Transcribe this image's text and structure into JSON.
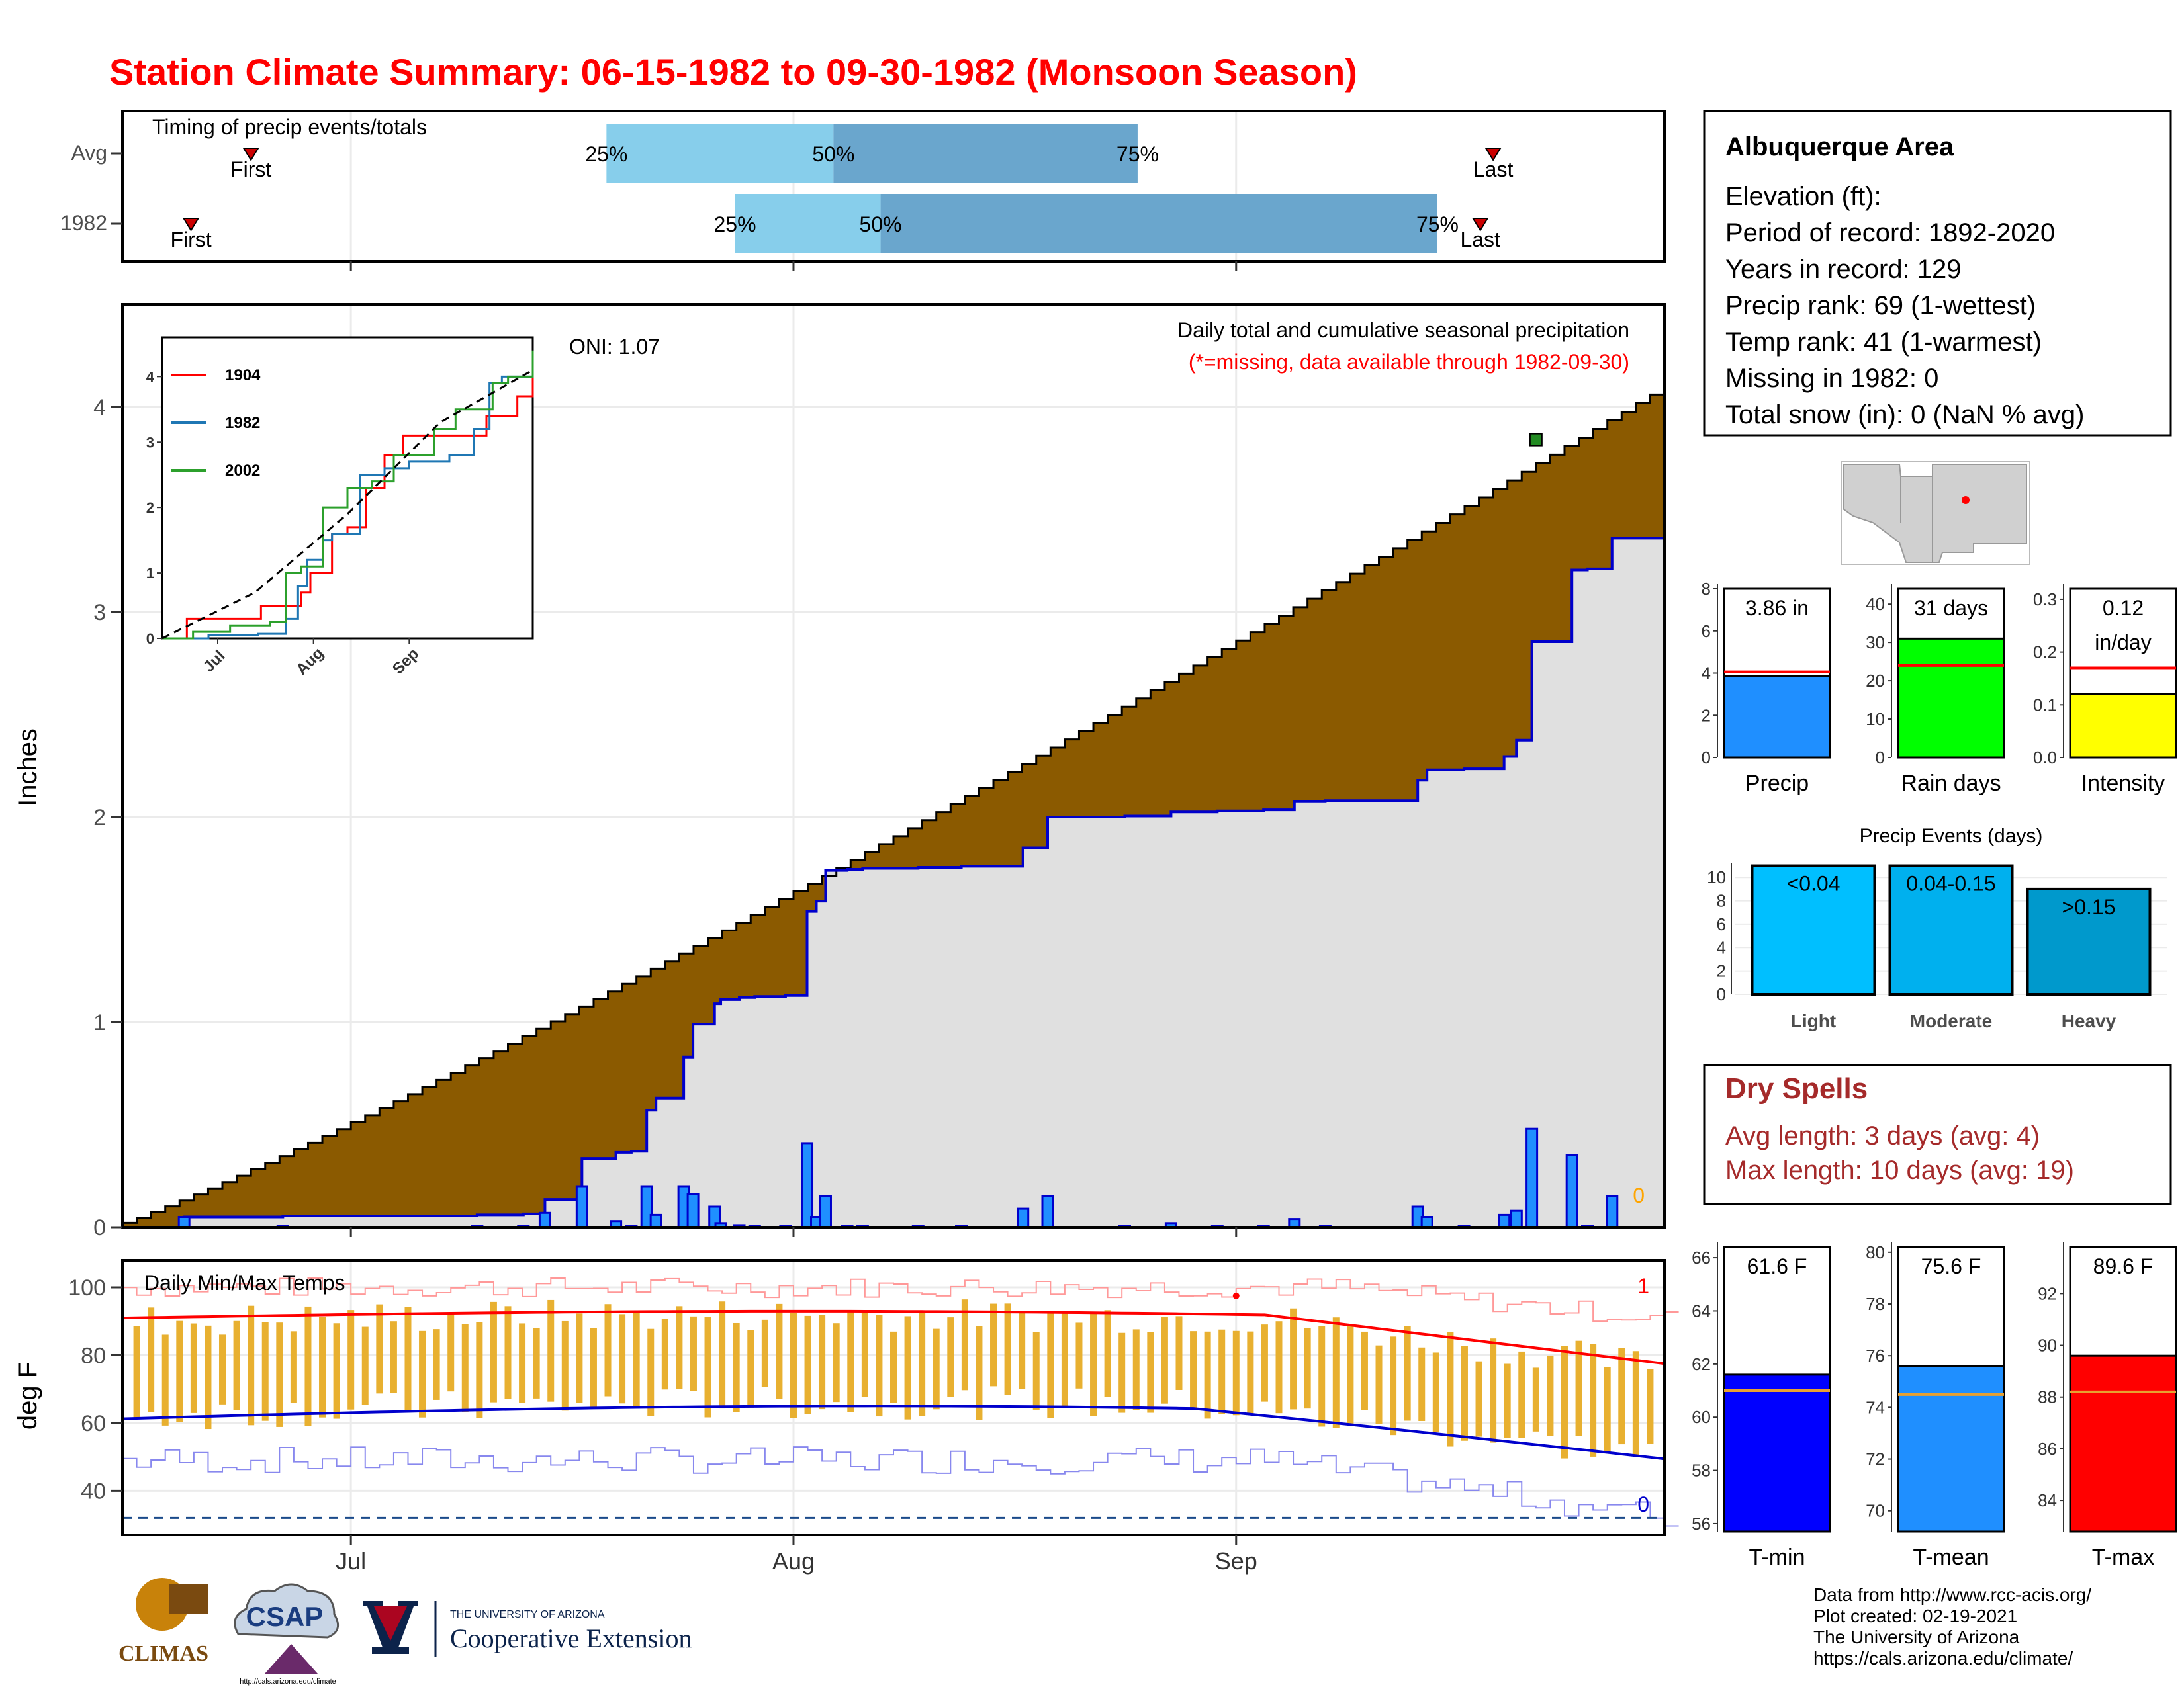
{
  "title": "Station Climate Summary: 06-15-1982 to 09-30-1982 (Monsoon Season)",
  "colors": {
    "title": "#ff0000",
    "brown": "#8b5a00",
    "gray": "#e0e0e0",
    "blue": "#1f8fff",
    "navy": "#0000cc",
    "orange": "#e8b030",
    "darkred": "#a52a2a"
  },
  "timing": {
    "title": "Timing of precip events/totals",
    "rows": [
      {
        "label": "Avg",
        "first_label": "First",
        "last_label": "Last",
        "p25": "25%",
        "p50": "50%",
        "p75": "75%"
      },
      {
        "label": "1982",
        "first_label": "First",
        "last_label": "Last",
        "p25": "25%",
        "p50": "50%",
        "p75": "75%"
      }
    ]
  },
  "chart_data": [
    {
      "name": "timing",
      "type": "bar",
      "rows": [
        "Avg",
        "1982"
      ],
      "first_day": [
        30,
        16
      ],
      "p25_day": [
        113,
        143
      ],
      "p50_day": [
        166,
        177
      ],
      "p75_day": [
        237,
        307
      ],
      "last_day": [
        320,
        317
      ]
    },
    {
      "name": "precip",
      "type": "area",
      "title": "Daily total and cumulative seasonal precipitation",
      "subtitle": "(*=missing, data available through 1982-09-30)",
      "annotation": "ONI: 1.07",
      "corner_value": "0",
      "ylabel": "Inches",
      "ylim": [
        0,
        4.5
      ],
      "yticks": [
        "0",
        "1",
        "2",
        "3",
        "4"
      ],
      "xticks": [
        "Jul",
        "Aug",
        "Sep"
      ],
      "avg_total": 4.06,
      "daily_1982": [
        [
          20,
          0.05
        ],
        [
          52,
          0.005
        ],
        [
          115,
          0.005
        ],
        [
          130,
          0.005
        ],
        [
          137,
          0.07
        ],
        [
          149,
          0.2
        ],
        [
          160,
          0.03
        ],
        [
          165,
          0.005
        ],
        [
          170,
          0.2
        ],
        [
          173,
          0.06
        ],
        [
          182,
          0.2
        ],
        [
          185,
          0.16
        ],
        [
          192,
          0.1
        ],
        [
          194,
          0.02
        ],
        [
          200,
          0.01
        ],
        [
          205,
          0.005
        ],
        [
          215,
          0.005
        ],
        [
          222,
          0.41
        ],
        [
          225,
          0.05
        ],
        [
          228,
          0.15
        ],
        [
          235,
          0.005
        ],
        [
          240,
          0.005
        ],
        [
          258,
          0.005
        ],
        [
          272,
          0.005
        ],
        [
          292,
          0.09
        ],
        [
          300,
          0.15
        ],
        [
          325,
          0.005
        ],
        [
          340,
          0.02
        ],
        [
          355,
          0.005
        ],
        [
          370,
          0.005
        ],
        [
          380,
          0.04
        ],
        [
          390,
          0.005
        ],
        [
          420,
          0.1
        ],
        [
          423,
          0.05
        ],
        [
          435,
          0.005
        ],
        [
          448,
          0.06
        ],
        [
          452,
          0.08
        ],
        [
          457,
          0.48
        ],
        [
          470,
          0.35
        ],
        [
          475,
          0.005
        ],
        [
          483,
          0.15
        ]
      ]
    },
    {
      "name": "inset",
      "type": "line",
      "yticks": [
        "0",
        "1",
        "2",
        "3",
        "4"
      ],
      "xticks": [
        "Jul",
        "Aug",
        "Sep"
      ],
      "series": [
        {
          "name": "1904",
          "color": "#ff0000",
          "values": [
            [
              0,
              0
            ],
            [
              8,
              0.3
            ],
            [
              20,
              0.3
            ],
            [
              32,
              0.5
            ],
            [
              45,
              0.7
            ],
            [
              48,
              1.0
            ],
            [
              55,
              1.6
            ],
            [
              60,
              1.7
            ],
            [
              66,
              2.3
            ],
            [
              72,
              2.8
            ],
            [
              78,
              3.1
            ],
            [
              86,
              3.1
            ],
            [
              96,
              3.1
            ],
            [
              105,
              3.4
            ],
            [
              115,
              3.7
            ],
            [
              120,
              4.3
            ]
          ]
        },
        {
          "name": "1982",
          "color": "#1f77b4",
          "values": [
            [
              0,
              0
            ],
            [
              15,
              0.05
            ],
            [
              31,
              0.07
            ],
            [
              40,
              0.3
            ],
            [
              44,
              0.8
            ],
            [
              47,
              1.2
            ],
            [
              52,
              1.5
            ],
            [
              55,
              1.6
            ],
            [
              64,
              2.5
            ],
            [
              72,
              2.6
            ],
            [
              80,
              2.7
            ],
            [
              93,
              2.8
            ],
            [
              101,
              3.2
            ],
            [
              106,
              3.9
            ],
            [
              110,
              4.0
            ],
            [
              120,
              4.0
            ]
          ]
        },
        {
          "name": "2002",
          "color": "#2ca02c",
          "values": [
            [
              0,
              0
            ],
            [
              10,
              0.1
            ],
            [
              22,
              0.2
            ],
            [
              35,
              0.25
            ],
            [
              40,
              1.0
            ],
            [
              45,
              1.1
            ],
            [
              52,
              2.0
            ],
            [
              60,
              2.3
            ],
            [
              68,
              2.4
            ],
            [
              75,
              2.8
            ],
            [
              88,
              3.2
            ],
            [
              95,
              3.5
            ],
            [
              102,
              3.5
            ],
            [
              107,
              3.9
            ],
            [
              112,
              4.0
            ],
            [
              120,
              4.4
            ]
          ]
        },
        {
          "name": "avg",
          "color": "#000000",
          "values": [
            [
              0,
              0
            ],
            [
              30,
              0.7
            ],
            [
              60,
              1.9
            ],
            [
              90,
              3.3
            ],
            [
              120,
              4.1
            ]
          ]
        }
      ]
    },
    {
      "name": "temps",
      "type": "line",
      "title": "Daily Min/Max Temps",
      "ylabel": "deg F",
      "ylim": [
        27,
        108
      ],
      "yticks": [
        "40",
        "60",
        "80",
        "100"
      ],
      "xticks": [
        "Jul",
        "Aug",
        "Sep"
      ],
      "freeze_line": 32,
      "max_count": "1",
      "min_count": "0"
    },
    {
      "name": "summary_precip",
      "type": "bar",
      "categories": [
        "Precip",
        "Rain days",
        "Intensity"
      ],
      "values": [
        3.86,
        31,
        0.12
      ],
      "averages": [
        4.06,
        24,
        0.17
      ],
      "labels": [
        "3.86 in",
        "31 days",
        "0.12 in/day"
      ],
      "yticks": [
        [
          "0",
          "2",
          "4",
          "6",
          "8"
        ],
        [
          "0",
          "10",
          "20",
          "30",
          "40"
        ],
        [
          "0.0",
          "0.1",
          "0.2",
          "0.3"
        ]
      ]
    },
    {
      "name": "precip_events",
      "type": "bar",
      "title": "Precip Events (days)",
      "categories": [
        "Light",
        "Moderate",
        "Heavy"
      ],
      "values": [
        11,
        11,
        9
      ],
      "labels": [
        "<0.04",
        "0.04-0.15",
        ">0.15"
      ],
      "yticks": [
        "0",
        "2",
        "4",
        "6",
        "8",
        "10"
      ]
    },
    {
      "name": "summary_temp",
      "type": "bar",
      "categories": [
        "T-min",
        "T-mean",
        "T-max"
      ],
      "values": [
        61.6,
        75.6,
        89.6
      ],
      "averages": [
        61.0,
        74.5,
        88.2
      ],
      "labels": [
        "61.6 F",
        "75.6 F",
        "89.6 F"
      ],
      "yticks": [
        [
          "56",
          "58",
          "60",
          "62",
          "64",
          "66"
        ],
        [
          "70",
          "72",
          "74",
          "76",
          "78",
          "80"
        ],
        [
          "84",
          "86",
          "88",
          "90",
          "92"
        ]
      ]
    }
  ],
  "info": {
    "station": "Albuquerque Area",
    "lines": [
      "Elevation (ft):",
      "Period of record: 1892-2020",
      "Years in record: 129",
      "Precip rank: 69 (1-wettest)",
      "Temp rank: 41 (1-warmest)",
      "Missing in 1982: 0",
      "Total snow (in): 0 (NaN % avg)"
    ]
  },
  "dry_spells": {
    "title": "Dry Spells",
    "avg": "Avg length: 3 days (avg: 4)",
    "max": "Max length: 10 days (avg: 19)"
  },
  "footer": {
    "lines": [
      "Data from http://www.rcc-acis.org/",
      "Plot created: 02-19-2021",
      "The University of Arizona",
      "https://cals.arizona.edu/climate/"
    ]
  },
  "logos": {
    "climas": "CLIMAS",
    "csap": "CSAP",
    "csap_url": "http://cals.arizona.edu/climate",
    "ua_top": "THE UNIVERSITY OF ARIZONA",
    "ua_bottom": "Cooperative Extension"
  }
}
